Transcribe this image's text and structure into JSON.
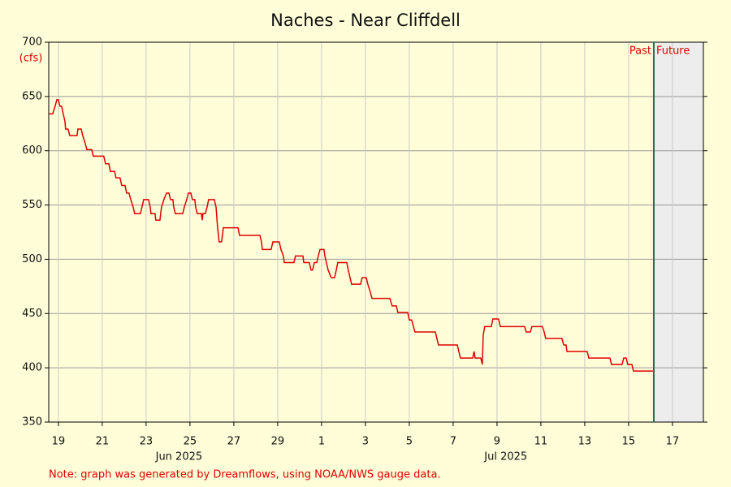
{
  "chart_data": {
    "type": "line",
    "title": "Naches - Near Cliffdell",
    "y_unit_label": "(cfs)",
    "note": "Note: graph was generated by Dreamflows, using NOAA/NWS gauge data.",
    "past_label": "Past",
    "future_label": "Future",
    "now_x": 46.15,
    "color": "#e00000",
    "grid": true,
    "xlim": [
      18.56,
      48.41
    ],
    "xticks": [
      19,
      21,
      23,
      25,
      27,
      29,
      {
        "value": 31,
        "label": "1"
      },
      {
        "value": 33,
        "label": "3"
      },
      {
        "value": 35,
        "label": "5"
      },
      {
        "value": 37,
        "label": "7"
      },
      {
        "value": 39,
        "label": "9"
      },
      {
        "value": 41,
        "label": "11"
      },
      {
        "value": 43,
        "label": "13"
      },
      {
        "value": 45,
        "label": "15"
      },
      {
        "value": 47,
        "label": "17"
      }
    ],
    "month_labels": [
      {
        "value": 24.5,
        "label": "Jun 2025"
      },
      {
        "value": 39.4,
        "label": "Jul 2025"
      }
    ],
    "ylim": [
      350,
      700
    ],
    "yticks": [
      350,
      400,
      450,
      500,
      550,
      600,
      650,
      700
    ],
    "x": [
      18.56,
      18.74,
      18.85,
      18.93,
      19.0,
      19.07,
      19.15,
      19.22,
      19.3,
      19.33,
      19.44,
      19.52,
      19.85,
      19.89,
      20.04,
      20.11,
      20.22,
      20.3,
      20.52,
      20.59,
      21.07,
      21.15,
      21.3,
      21.37,
      21.56,
      21.63,
      21.81,
      21.89,
      22.04,
      22.11,
      22.22,
      22.3,
      22.41,
      22.48,
      22.74,
      22.81,
      22.89,
      23.11,
      23.19,
      23.22,
      23.41,
      23.44,
      23.63,
      23.7,
      23.81,
      23.93,
      24.04,
      24.11,
      24.22,
      24.26,
      24.33,
      24.67,
      24.74,
      24.85,
      24.93,
      25.04,
      25.11,
      25.22,
      25.26,
      25.33,
      25.52,
      25.56,
      25.59,
      25.7,
      25.78,
      25.85,
      26.11,
      26.19,
      26.26,
      26.33,
      26.44,
      26.48,
      26.52,
      27.19,
      27.26,
      28.19,
      28.26,
      28.3,
      28.7,
      28.78,
      29.07,
      29.15,
      29.26,
      29.3,
      29.74,
      29.81,
      30.15,
      30.19,
      30.44,
      30.52,
      30.59,
      30.67,
      30.78,
      30.85,
      30.93,
      31.11,
      31.15,
      31.22,
      31.3,
      31.44,
      31.59,
      31.67,
      31.74,
      32.15,
      32.22,
      32.3,
      32.37,
      32.78,
      32.85,
      33.04,
      33.11,
      33.22,
      33.3,
      34.11,
      34.22,
      34.41,
      34.48,
      34.93,
      35.0,
      35.11,
      35.19,
      35.26,
      36.19,
      36.26,
      36.33,
      37.19,
      37.26,
      37.33,
      37.89,
      37.96,
      38.0,
      38.26,
      38.33,
      38.37,
      38.44,
      38.74,
      38.81,
      39.07,
      39.15,
      40.26,
      40.33,
      40.52,
      40.59,
      41.07,
      41.15,
      41.22,
      41.96,
      42.04,
      42.15,
      42.19,
      43.11,
      43.19,
      44.15,
      44.22,
      44.7,
      44.78,
      44.89,
      44.96,
      45.15,
      45.22,
      46.11
    ],
    "values": [
      634,
      634,
      641,
      647,
      647,
      641,
      641,
      634,
      627,
      620,
      620,
      614,
      614,
      620,
      620,
      614,
      607,
      601,
      601,
      595,
      595,
      588,
      588,
      581,
      581,
      575,
      575,
      568,
      568,
      561,
      561,
      555,
      548,
      542,
      542,
      548,
      555,
      555,
      548,
      542,
      542,
      536,
      536,
      548,
      555,
      561,
      561,
      555,
      555,
      548,
      542,
      542,
      548,
      555,
      561,
      561,
      555,
      555,
      548,
      542,
      542,
      536,
      542,
      542,
      548,
      555,
      555,
      548,
      529,
      516,
      516,
      522,
      529,
      529,
      522,
      522,
      516,
      509,
      509,
      516,
      516,
      509,
      503,
      497,
      497,
      503,
      503,
      497,
      497,
      490,
      490,
      497,
      497,
      503,
      509,
      509,
      503,
      497,
      490,
      483,
      483,
      490,
      497,
      497,
      490,
      483,
      477,
      477,
      483,
      483,
      477,
      470,
      464,
      464,
      457,
      457,
      451,
      451,
      444,
      444,
      438,
      433,
      433,
      427,
      421,
      421,
      415,
      409,
      409,
      415,
      409,
      409,
      403,
      430,
      438,
      438,
      445,
      445,
      438,
      438,
      433,
      433,
      438,
      438,
      433,
      427,
      427,
      421,
      421,
      415,
      415,
      409,
      409,
      403,
      403,
      409,
      409,
      403,
      403,
      397,
      397
    ]
  }
}
